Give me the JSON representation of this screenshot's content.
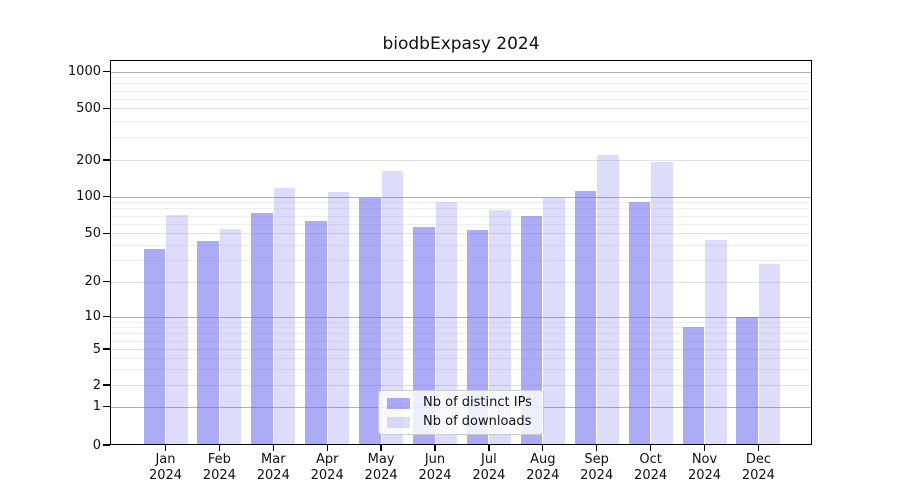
{
  "title": "biodbExpasy 2024",
  "chart_data": {
    "type": "bar",
    "title": "biodbExpasy 2024",
    "categories": [
      "Jan\n2024",
      "Feb\n2024",
      "Mar\n2024",
      "Apr\n2024",
      "May\n2024",
      "Jun\n2024",
      "Jul\n2024",
      "Aug\n2024",
      "Sep\n2024",
      "Oct\n2024",
      "Nov\n2024",
      "Dec\n2024"
    ],
    "series": [
      {
        "name": "Nb of distinct IPs",
        "color": "#6666ee8c",
        "values": [
          37,
          43,
          74,
          63,
          98,
          56,
          53,
          69,
          112,
          91,
          8,
          10
        ]
      },
      {
        "name": "Nb of downloads",
        "color": "#6666ee38",
        "values": [
          71,
          54,
          118,
          110,
          163,
          90,
          78,
          97,
          220,
          193,
          44,
          28
        ]
      }
    ],
    "y_ticks": [
      0,
      1,
      2,
      5,
      10,
      20,
      50,
      100,
      200,
      500,
      1000
    ],
    "y_scale": "symlog",
    "ylim": [
      0,
      1200
    ],
    "grid": true,
    "legend_position": "lower center",
    "grid_colors": {
      "major": "#b0b0b0",
      "labeled_minor": "#e2e2e2",
      "minor": "#efefef"
    }
  }
}
